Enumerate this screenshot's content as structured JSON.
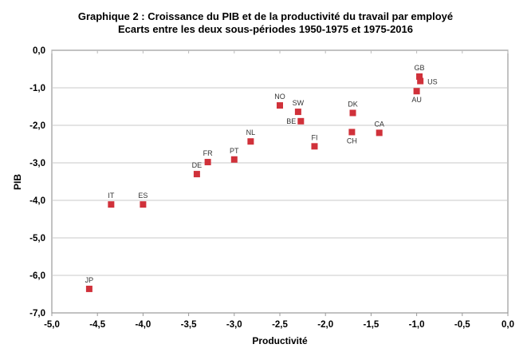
{
  "chart_data": {
    "type": "scatter",
    "title": "Graphique 2 : Croissance du PIB et  de la productivité du travail par employé",
    "subtitle": "Ecarts entre les deux sous-périodes 1950-1975 et 1975-2016",
    "xlabel": "Productivité",
    "ylabel": "PIB",
    "xlim": [
      -5.0,
      0.0
    ],
    "ylim": [
      -7.0,
      0.0
    ],
    "xticks": [
      "-5,0",
      "-4,5",
      "-4,0",
      "-3,5",
      "-3,0",
      "-2,5",
      "-2,0",
      "-1,5",
      "-1,0",
      "-0,5",
      "0,0"
    ],
    "yticks": [
      "0,0",
      "-1,0",
      "-2,0",
      "-3,0",
      "-4,0",
      "-5,0",
      "-6,0",
      "-7,0"
    ],
    "grid": "horizontal",
    "marker_color": "#d0313a",
    "points": [
      {
        "label": "GB",
        "x": -0.97,
        "y": -0.7,
        "label_pos": "above"
      },
      {
        "label": "US",
        "x": -0.96,
        "y": -0.82,
        "label_pos": "right"
      },
      {
        "label": "AU",
        "x": -1.0,
        "y": -1.09,
        "label_pos": "below"
      },
      {
        "label": "NO",
        "x": -2.5,
        "y": -1.47,
        "label_pos": "above"
      },
      {
        "label": "SW",
        "x": -2.3,
        "y": -1.64,
        "label_pos": "above"
      },
      {
        "label": "BE",
        "x": -2.27,
        "y": -1.89,
        "label_pos": "left"
      },
      {
        "label": "DK",
        "x": -1.7,
        "y": -1.67,
        "label_pos": "above"
      },
      {
        "label": "CH",
        "x": -1.71,
        "y": -2.18,
        "label_pos": "below"
      },
      {
        "label": "CA",
        "x": -1.41,
        "y": -2.2,
        "label_pos": "above"
      },
      {
        "label": "FI",
        "x": -2.12,
        "y": -2.56,
        "label_pos": "above"
      },
      {
        "label": "NL",
        "x": -2.82,
        "y": -2.43,
        "label_pos": "above"
      },
      {
        "label": "PT",
        "x": -3.0,
        "y": -2.91,
        "label_pos": "above"
      },
      {
        "label": "FR",
        "x": -3.29,
        "y": -2.98,
        "label_pos": "above"
      },
      {
        "label": "DE",
        "x": -3.41,
        "y": -3.3,
        "label_pos": "above"
      },
      {
        "label": "IT",
        "x": -4.35,
        "y": -4.11,
        "label_pos": "above"
      },
      {
        "label": "ES",
        "x": -4.0,
        "y": -4.11,
        "label_pos": "above"
      },
      {
        "label": "JP",
        "x": -4.59,
        "y": -6.36,
        "label_pos": "above"
      }
    ]
  }
}
